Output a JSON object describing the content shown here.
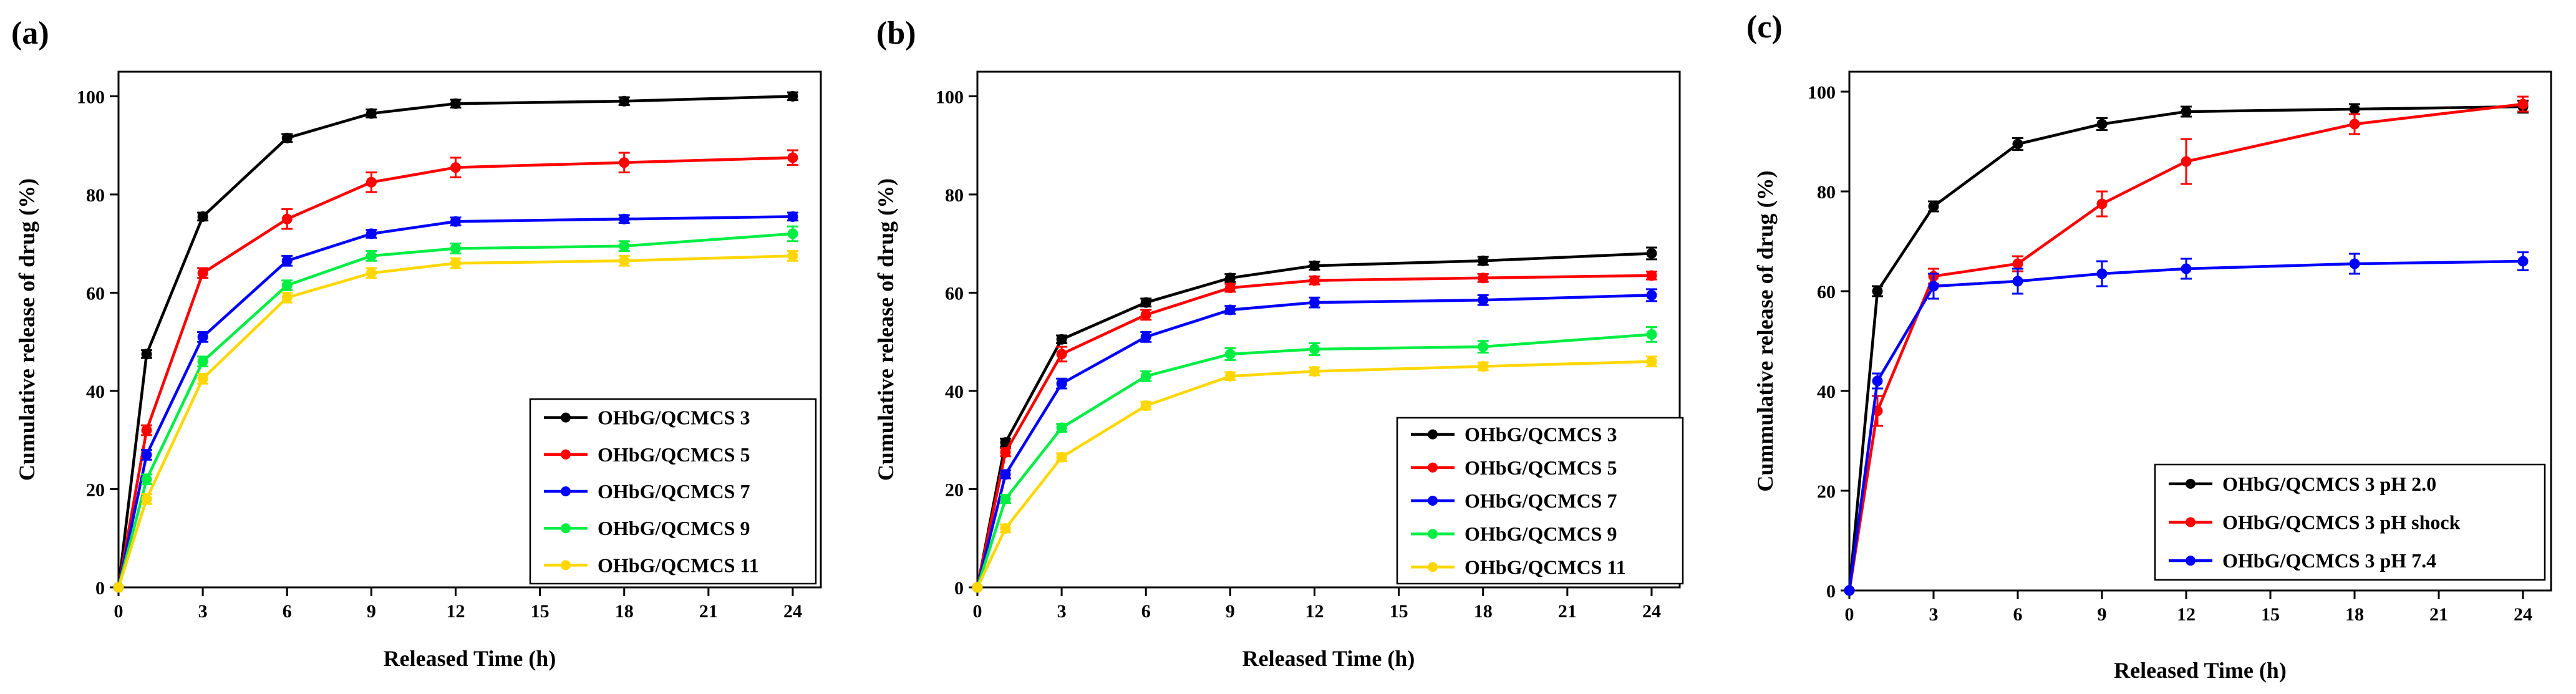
{
  "chart_data": [
    {
      "type": "line",
      "panel_label": "(a)",
      "xlabel": "Released Time (h)",
      "ylabel": "Cumulative release of drug (%)",
      "xlim": [
        0,
        25
      ],
      "ylim": [
        0,
        105
      ],
      "xticks": [
        0,
        3,
        6,
        9,
        12,
        15,
        18,
        21,
        24
      ],
      "yticks": [
        0,
        20,
        40,
        60,
        80,
        100
      ],
      "legend_position": "bottom-right",
      "series": [
        {
          "name": "OHbG/QCMCS 3",
          "color": "#000000",
          "x": [
            0,
            1,
            3,
            6,
            9,
            12,
            18,
            24
          ],
          "y": [
            0,
            47.5,
            75.5,
            91.5,
            96.5,
            98.5,
            99,
            100
          ],
          "err": [
            0,
            0.8,
            0.8,
            0.8,
            0.8,
            0.8,
            0.8,
            0.8
          ]
        },
        {
          "name": "OHbG/QCMCS 5",
          "color": "#ff0000",
          "x": [
            0,
            1,
            3,
            6,
            9,
            12,
            18,
            24
          ],
          "y": [
            0,
            32,
            64,
            75,
            82.5,
            85.5,
            86.5,
            87.5
          ],
          "err": [
            0,
            1,
            1,
            2,
            2,
            2,
            2,
            1.5
          ]
        },
        {
          "name": "OHbG/QCMCS 7",
          "color": "#0000ff",
          "x": [
            0,
            1,
            3,
            6,
            9,
            12,
            18,
            24
          ],
          "y": [
            0,
            27,
            51,
            66.5,
            72,
            74.5,
            75,
            75.5
          ],
          "err": [
            0,
            1,
            1,
            1,
            0.8,
            0.8,
            0.8,
            0.8
          ]
        },
        {
          "name": "OHbG/QCMCS 9",
          "color": "#00ee44",
          "x": [
            0,
            1,
            3,
            6,
            9,
            12,
            18,
            24
          ],
          "y": [
            0,
            22,
            46,
            61.5,
            67.5,
            69,
            69.5,
            72
          ],
          "err": [
            0,
            1,
            1,
            1,
            1,
            1,
            1,
            1.5
          ]
        },
        {
          "name": "OHbG/QCMCS 11",
          "color": "#ffd700",
          "x": [
            0,
            1,
            3,
            6,
            9,
            12,
            18,
            24
          ],
          "y": [
            0,
            18,
            42.5,
            59,
            64,
            66,
            66.5,
            67.5
          ],
          "err": [
            0,
            1,
            1,
            1,
            1,
            1,
            1,
            1
          ]
        }
      ]
    },
    {
      "type": "line",
      "panel_label": "(b)",
      "xlabel": "Released Time (h)",
      "ylabel": "Cumulative release of drug (%)",
      "xlim": [
        0,
        25
      ],
      "ylim": [
        0,
        105
      ],
      "xticks": [
        0,
        3,
        6,
        9,
        12,
        15,
        18,
        21,
        24
      ],
      "yticks": [
        0,
        20,
        40,
        60,
        80,
        100
      ],
      "legend_position": "bottom-right",
      "series": [
        {
          "name": "OHbG/QCMCS 3",
          "color": "#000000",
          "x": [
            0,
            1,
            3,
            6,
            9,
            12,
            18,
            24
          ],
          "y": [
            0,
            29.5,
            50.5,
            58,
            63,
            65.5,
            66.5,
            68
          ],
          "err": [
            0,
            0.8,
            0.8,
            0.8,
            0.8,
            0.8,
            0.8,
            1.2
          ]
        },
        {
          "name": "OHbG/QCMCS 5",
          "color": "#ff0000",
          "x": [
            0,
            1,
            3,
            6,
            9,
            12,
            18,
            24
          ],
          "y": [
            0,
            27.5,
            47.5,
            55.5,
            61,
            62.5,
            63,
            63.5
          ],
          "err": [
            0,
            0.8,
            1.5,
            1,
            0.8,
            0.8,
            0.8,
            0.8
          ]
        },
        {
          "name": "OHbG/QCMCS 7",
          "color": "#0000ff",
          "x": [
            0,
            1,
            3,
            6,
            9,
            12,
            18,
            24
          ],
          "y": [
            0,
            23,
            41.5,
            51,
            56.5,
            58,
            58.5,
            59.5
          ],
          "err": [
            0,
            0.8,
            1,
            1,
            0.8,
            1,
            1,
            1.2
          ]
        },
        {
          "name": "OHbG/QCMCS 9",
          "color": "#00ee44",
          "x": [
            0,
            1,
            3,
            6,
            9,
            12,
            18,
            24
          ],
          "y": [
            0,
            18,
            32.5,
            43,
            47.5,
            48.5,
            49,
            51.5
          ],
          "err": [
            0,
            0.8,
            0.8,
            1,
            1.2,
            1.2,
            1.2,
            1.5
          ]
        },
        {
          "name": "OHbG/QCMCS 11",
          "color": "#ffd700",
          "x": [
            0,
            1,
            3,
            6,
            9,
            12,
            18,
            24
          ],
          "y": [
            0,
            12,
            26.5,
            37,
            43,
            44,
            45,
            46
          ],
          "err": [
            0,
            0.8,
            0.8,
            0.8,
            0.8,
            0.8,
            0.8,
            1
          ]
        }
      ]
    },
    {
      "type": "line",
      "panel_label": "(c)",
      "xlabel": "Released Time (h)",
      "ylabel": "Cummulative release of drug (%)",
      "xlim": [
        0,
        25
      ],
      "ylim": [
        0,
        104
      ],
      "xticks": [
        0,
        3,
        6,
        9,
        12,
        15,
        18,
        21,
        24
      ],
      "yticks": [
        0,
        20,
        40,
        60,
        80,
        100
      ],
      "legend_position": "bottom-right",
      "series": [
        {
          "name": "OHbG/QCMCS 3 pH 2.0",
          "color": "#000000",
          "x": [
            0,
            1,
            3,
            6,
            9,
            12,
            18,
            24
          ],
          "y": [
            0,
            60,
            77,
            89.5,
            93.5,
            96,
            96.5,
            97
          ],
          "err": [
            0,
            1,
            1,
            1.2,
            1.2,
            1,
            1,
            1.2
          ]
        },
        {
          "name": "OHbG/QCMCS 3 pH shock",
          "color": "#ff0000",
          "x": [
            0,
            1,
            3,
            6,
            9,
            12,
            18,
            24
          ],
          "y": [
            0,
            36,
            63,
            65.5,
            77.5,
            86,
            93.5,
            97.5
          ],
          "err": [
            0,
            3,
            1.5,
            1.5,
            2.5,
            4.5,
            2,
            1.5
          ]
        },
        {
          "name": "OHbG/QCMCS 3 pH 7.4",
          "color": "#0000ff",
          "x": [
            0,
            1,
            3,
            6,
            9,
            12,
            18,
            24
          ],
          "y": [
            0,
            42,
            61,
            62,
            63.5,
            64.5,
            65.5,
            66
          ],
          "err": [
            0,
            1.5,
            2.5,
            2.5,
            2.5,
            2,
            2,
            1.8
          ]
        }
      ]
    }
  ]
}
